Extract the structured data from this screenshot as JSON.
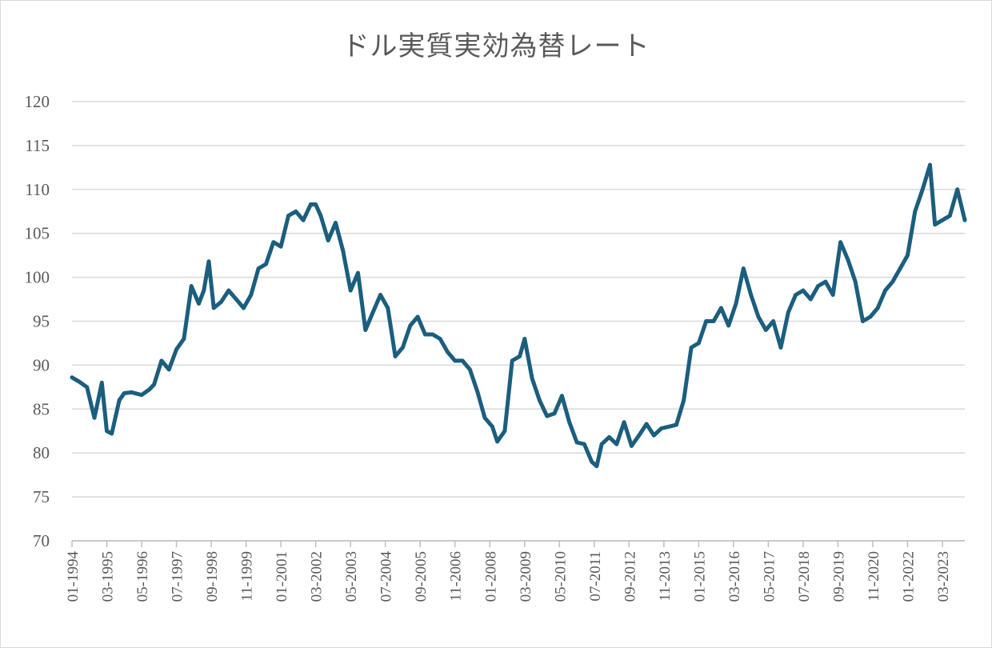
{
  "chart_data": {
    "type": "line",
    "title": "ドル実質実効為替レート",
    "xlabel": "",
    "ylabel": "",
    "ylim": [
      70,
      120
    ],
    "yticks": [
      70,
      75,
      80,
      85,
      90,
      95,
      100,
      105,
      110,
      115,
      120
    ],
    "grid": true,
    "legend": "none",
    "line_color": "#1b5e7e",
    "xticks": [
      "01-1994",
      "03-1995",
      "05-1996",
      "07-1997",
      "09-1998",
      "11-1999",
      "01-2001",
      "03-2002",
      "05-2003",
      "07-2004",
      "09-2005",
      "11-2006",
      "01-2008",
      "03-2009",
      "05-2010",
      "07-2011",
      "09-2012",
      "11-2013",
      "01-2015",
      "03-2016",
      "05-2017",
      "07-2018",
      "09-2019",
      "11-2020",
      "01-2022",
      "03-2023"
    ],
    "series": [
      {
        "x": [
          "1994-01",
          "1994-04",
          "1994-07",
          "1994-10",
          "1995-01",
          "1995-03",
          "1995-05",
          "1995-08",
          "1995-10",
          "1996-01",
          "1996-05",
          "1996-08",
          "1996-10",
          "1997-01",
          "1997-04",
          "1997-07",
          "1997-10",
          "1998-01",
          "1998-04",
          "1998-06",
          "1998-08",
          "1998-10",
          "1999-01",
          "1999-04",
          "1999-07",
          "1999-10",
          "2000-01",
          "2000-04",
          "2000-07",
          "2000-10",
          "2001-01",
          "2001-04",
          "2001-07",
          "2001-10",
          "2002-01",
          "2002-03",
          "2002-05",
          "2002-08",
          "2002-11",
          "2003-02",
          "2003-05",
          "2003-08",
          "2003-11",
          "2004-02",
          "2004-05",
          "2004-08",
          "2004-11",
          "2005-02",
          "2005-05",
          "2005-08",
          "2005-11",
          "2006-02",
          "2006-05",
          "2006-08",
          "2006-11",
          "2007-02",
          "2007-05",
          "2007-08",
          "2007-11",
          "2008-02",
          "2008-04",
          "2008-07",
          "2008-10",
          "2009-01",
          "2009-03",
          "2009-06",
          "2009-09",
          "2009-12",
          "2010-03",
          "2010-06",
          "2010-09",
          "2010-12",
          "2011-03",
          "2011-06",
          "2011-08",
          "2011-10",
          "2012-01",
          "2012-04",
          "2012-07",
          "2012-10",
          "2013-01",
          "2013-04",
          "2013-07",
          "2013-10",
          "2014-01",
          "2014-04",
          "2014-07",
          "2014-10",
          "2015-01",
          "2015-04",
          "2015-07",
          "2015-10",
          "2016-01",
          "2016-04",
          "2016-07",
          "2016-10",
          "2017-01",
          "2017-04",
          "2017-07",
          "2017-10",
          "2018-01",
          "2018-04",
          "2018-07",
          "2018-10",
          "2019-01",
          "2019-04",
          "2019-07",
          "2019-10",
          "2020-01",
          "2020-04",
          "2020-07",
          "2020-10",
          "2021-01",
          "2021-04",
          "2021-07",
          "2021-10",
          "2022-01",
          "2022-04",
          "2022-07",
          "2022-10",
          "2022-12",
          "2023-03",
          "2023-06",
          "2023-09",
          "2023-12"
        ],
        "values": [
          88.6,
          88.1,
          87.5,
          84.0,
          88.0,
          82.5,
          82.2,
          86.0,
          86.8,
          86.9,
          86.6,
          87.2,
          87.8,
          90.5,
          89.5,
          91.8,
          93.0,
          99.0,
          97.0,
          98.5,
          101.8,
          96.5,
          97.2,
          98.5,
          97.5,
          96.5,
          98.0,
          101.0,
          101.5,
          104.0,
          103.5,
          107.0,
          107.5,
          106.5,
          108.3,
          108.3,
          107.0,
          104.2,
          106.2,
          103.0,
          98.5,
          100.5,
          94.0,
          96.0,
          98.0,
          96.5,
          91.0,
          92.0,
          94.5,
          95.5,
          93.5,
          93.5,
          93.0,
          91.5,
          90.5,
          90.5,
          89.5,
          87.0,
          84.0,
          83.0,
          81.3,
          82.5,
          90.5,
          91.0,
          93.0,
          88.5,
          86.0,
          84.2,
          84.5,
          86.5,
          83.5,
          81.2,
          81.0,
          79.0,
          78.5,
          81.0,
          81.8,
          81.0,
          83.5,
          80.8,
          82.0,
          83.3,
          82.0,
          82.8,
          83.0,
          83.2,
          86.0,
          92.0,
          92.5,
          95.0,
          95.0,
          96.5,
          94.5,
          97.0,
          101.0,
          98.0,
          95.5,
          94.0,
          95.0,
          92.0,
          96.0,
          98.0,
          98.5,
          97.5,
          99.0,
          99.5,
          98.0,
          104.0,
          102.0,
          99.5,
          95.0,
          95.5,
          96.5,
          98.5,
          99.5,
          101.0,
          102.5,
          107.5,
          110.0,
          112.8,
          106.0,
          106.5,
          107.0,
          110.0,
          106.5
        ]
      }
    ]
  }
}
